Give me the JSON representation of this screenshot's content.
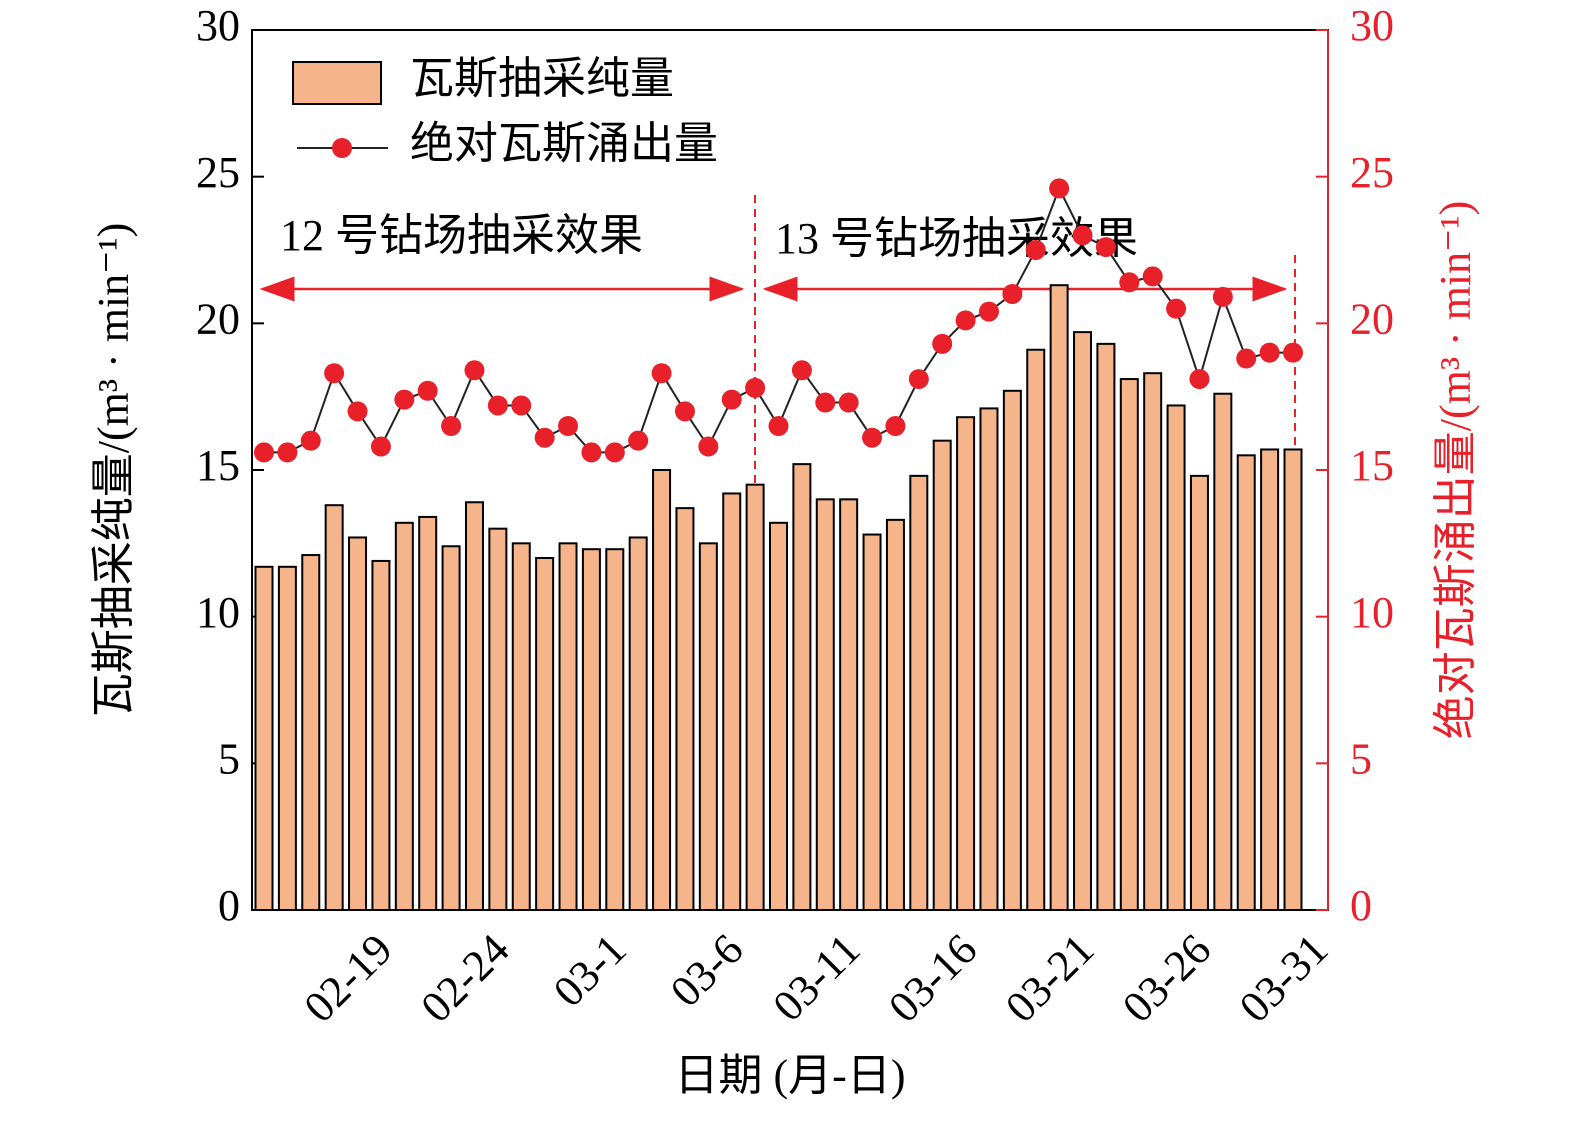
{
  "chart_data": {
    "type": "bar-line",
    "categories": [
      null,
      null,
      null,
      null,
      "02-19",
      null,
      null,
      null,
      null,
      "02-24",
      null,
      null,
      null,
      null,
      "03-1",
      null,
      null,
      null,
      null,
      "03-6",
      null,
      null,
      null,
      null,
      "03-11",
      null,
      null,
      null,
      null,
      "03-16",
      null,
      null,
      null,
      null,
      "03-21",
      null,
      null,
      null,
      null,
      "03-26",
      null,
      null,
      null,
      null,
      "03-31"
    ],
    "series": [
      {
        "name": "瓦斯抽采纯量",
        "kind": "bar",
        "color": "#f5b48a",
        "values": [
          11.7,
          11.7,
          12.1,
          13.8,
          12.7,
          11.9,
          13.2,
          13.4,
          12.4,
          13.9,
          13.0,
          12.5,
          12.0,
          12.5,
          12.3,
          12.3,
          12.7,
          15.0,
          13.7,
          12.5,
          14.2,
          14.5,
          13.2,
          15.2,
          14.0,
          14.0,
          12.8,
          13.3,
          14.8,
          16.0,
          16.8,
          17.1,
          17.7,
          19.1,
          21.3,
          19.7,
          19.3,
          18.1,
          18.3,
          17.2,
          14.8,
          17.6,
          15.5,
          15.7,
          15.7
        ]
      },
      {
        "name": "绝对瓦斯涌出量",
        "kind": "line",
        "axis": "y2",
        "color": "#e8202a",
        "values": [
          15.6,
          15.6,
          16.0,
          18.3,
          17.0,
          15.8,
          17.4,
          17.7,
          16.5,
          18.4,
          17.2,
          17.2,
          16.1,
          16.5,
          15.6,
          15.6,
          16.0,
          18.3,
          17.0,
          15.8,
          17.4,
          17.8,
          16.5,
          18.4,
          17.3,
          17.3,
          16.1,
          16.5,
          18.1,
          19.3,
          20.1,
          20.4,
          21.0,
          22.5,
          24.6,
          23.0,
          22.6,
          21.4,
          21.6,
          20.5,
          18.1,
          20.9,
          18.8,
          19.0,
          19.0
        ]
      }
    ],
    "xlabel": "日期 (月-日)",
    "ylabel": "瓦斯抽采纯量/(m³ · min⁻¹)",
    "y2label": "绝对瓦斯涌出量/(m³ · min⁻¹)",
    "ylim": [
      0,
      30
    ],
    "yticks": [
      0,
      5,
      10,
      15,
      20,
      25,
      30
    ],
    "y2lim": [
      0,
      30
    ],
    "y2ticks": [
      0,
      5,
      10,
      15,
      20,
      25,
      30
    ],
    "annotations": [
      "12 号钻场抽采效果",
      "13 号钻场抽采效果"
    ],
    "legend": "upper left"
  }
}
